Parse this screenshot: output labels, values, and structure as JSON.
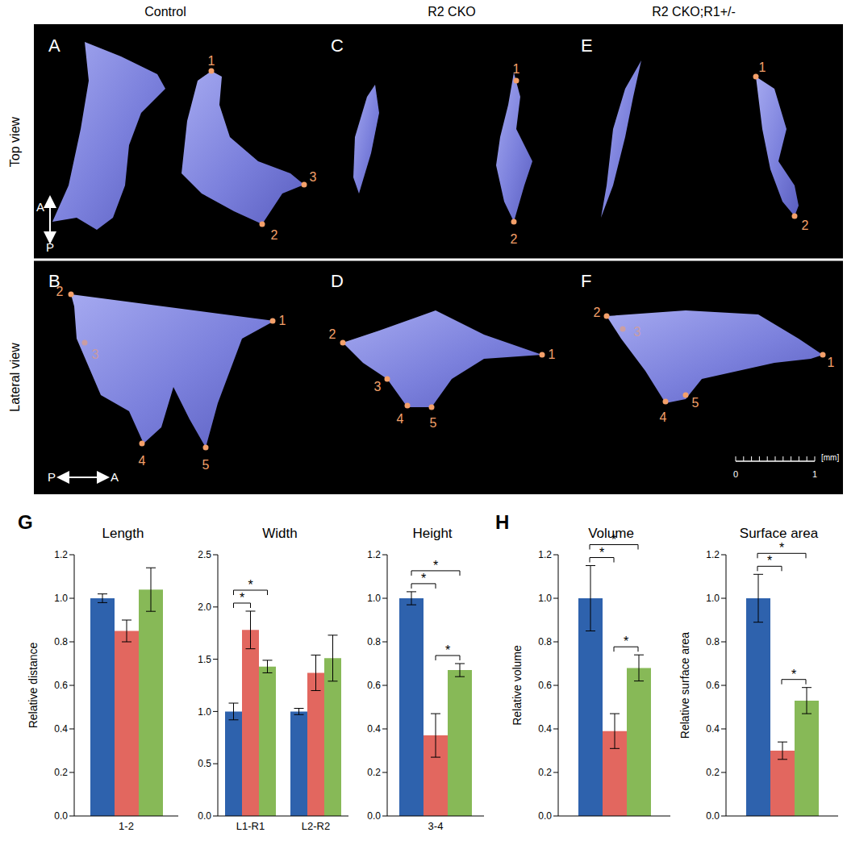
{
  "figure": {
    "columns": [
      "Control",
      "R2 CKO",
      "R2 CKO;R1+/-"
    ],
    "rows": [
      "Top view",
      "Lateral view"
    ],
    "panels": [
      {
        "letter": "A",
        "landmarks": [
          "1",
          "2",
          "3"
        ]
      },
      {
        "letter": "B",
        "landmarks": [
          "1",
          "2",
          "3",
          "4",
          "5"
        ]
      },
      {
        "letter": "C",
        "landmarks": [
          "1",
          "2"
        ]
      },
      {
        "letter": "D",
        "landmarks": [
          "1",
          "2",
          "3",
          "4",
          "5"
        ]
      },
      {
        "letter": "E",
        "landmarks": [
          "1",
          "2"
        ]
      },
      {
        "letter": "F",
        "landmarks": [
          "1",
          "2",
          "3",
          "4",
          "5"
        ]
      }
    ],
    "orientation": {
      "top": [
        "A",
        "P"
      ],
      "lateral": [
        "P",
        "A"
      ]
    },
    "scale_bar": {
      "labels": [
        "0",
        "1"
      ],
      "unit": "[mm]"
    },
    "chart_letters": [
      "G",
      "H"
    ]
  },
  "chart_data": [
    {
      "type": "bar",
      "title": "Length",
      "ylabel": "Relative distance",
      "categories": [
        "1-2"
      ],
      "series": [
        {
          "color": "#2e62ad",
          "values": [
            1.0
          ],
          "errors": [
            0.02
          ]
        },
        {
          "color": "#e2675f",
          "values": [
            0.85
          ],
          "errors": [
            0.05
          ]
        },
        {
          "color": "#87b957",
          "values": [
            1.04
          ],
          "errors": [
            0.1
          ]
        }
      ],
      "ylim": [
        0,
        1.2
      ],
      "yticks": [
        {
          "value": 0,
          "label": "0.0"
        },
        0.2,
        0.4,
        0.6,
        0.8,
        {
          "value": 1,
          "label": "1.0"
        },
        1.2
      ],
      "significance": []
    },
    {
      "type": "bar",
      "title": "Width",
      "categories": [
        "L1-R1",
        "L2-R2"
      ],
      "series": [
        {
          "color": "#2e62ad",
          "values": [
            1.0,
            1.0
          ],
          "errors": [
            0.08,
            0.03
          ]
        },
        {
          "color": "#e2675f",
          "values": [
            1.78,
            1.37
          ],
          "errors": [
            0.18,
            0.17
          ]
        },
        {
          "color": "#87b957",
          "values": [
            1.43,
            1.51
          ],
          "errors": [
            0.06,
            0.22
          ]
        }
      ],
      "ylim": [
        0,
        2.5
      ],
      "yticks": [
        {
          "value": 0,
          "label": "0.0"
        },
        0.5,
        {
          "value": 1,
          "label": "1.0"
        },
        1.5,
        {
          "value": 2,
          "label": "2.0"
        },
        2.5
      ],
      "significance": [
        {
          "category": 0,
          "between": [
            0,
            1
          ],
          "label": "*"
        },
        {
          "category": 0,
          "between": [
            0,
            2
          ],
          "label": "*"
        }
      ]
    },
    {
      "type": "bar",
      "title": "Height",
      "categories": [
        "3-4"
      ],
      "series": [
        {
          "color": "#2e62ad",
          "values": [
            1.0
          ],
          "errors": [
            0.03
          ]
        },
        {
          "color": "#e2675f",
          "values": [
            0.37
          ],
          "errors": [
            0.1
          ]
        },
        {
          "color": "#87b957",
          "values": [
            0.67
          ],
          "errors": [
            0.03
          ]
        }
      ],
      "ylim": [
        0,
        1.2
      ],
      "yticks": [
        {
          "value": 0,
          "label": "0.0"
        },
        0.2,
        0.4,
        0.6,
        0.8,
        {
          "value": 1,
          "label": "1.0"
        },
        1.2
      ],
      "significance": [
        {
          "category": 0,
          "between": [
            1,
            2
          ],
          "label": "*"
        },
        {
          "category": 0,
          "between": [
            0,
            1
          ],
          "label": "*"
        },
        {
          "category": 0,
          "between": [
            0,
            2
          ],
          "label": "*"
        }
      ]
    },
    {
      "type": "bar",
      "title": "Volume",
      "ylabel": "Relative volume",
      "categories": [
        null
      ],
      "series": [
        {
          "color": "#2e62ad",
          "values": [
            1.0
          ],
          "errors": [
            0.15
          ]
        },
        {
          "color": "#e2675f",
          "values": [
            0.39
          ],
          "errors": [
            0.08
          ]
        },
        {
          "color": "#87b957",
          "values": [
            0.68
          ],
          "errors": [
            0.06
          ]
        }
      ],
      "ylim": [
        0,
        1.2
      ],
      "yticks": [
        {
          "value": 0,
          "label": "0.0"
        },
        0.2,
        0.4,
        0.6,
        0.8,
        {
          "value": 1,
          "label": "1.0"
        },
        1.2
      ],
      "significance": [
        {
          "category": 0,
          "between": [
            1,
            2
          ],
          "label": "*"
        },
        {
          "category": 0,
          "between": [
            0,
            1
          ],
          "label": "*"
        },
        {
          "category": 0,
          "between": [
            0,
            2
          ],
          "label": "*"
        }
      ]
    },
    {
      "type": "bar",
      "title": "Surface area",
      "ylabel": "Relative surface area",
      "categories": [
        null
      ],
      "series": [
        {
          "color": "#2e62ad",
          "values": [
            1.0
          ],
          "errors": [
            0.11
          ]
        },
        {
          "color": "#e2675f",
          "values": [
            0.3
          ],
          "errors": [
            0.04
          ]
        },
        {
          "color": "#87b957",
          "values": [
            0.53
          ],
          "errors": [
            0.06
          ]
        }
      ],
      "ylim": [
        0,
        1.2
      ],
      "yticks": [
        {
          "value": 0,
          "label": "0.0"
        },
        0.2,
        0.4,
        0.6,
        0.8,
        {
          "value": 1,
          "label": "1.0"
        },
        1.2
      ],
      "significance": [
        {
          "category": 0,
          "between": [
            1,
            2
          ],
          "label": "*"
        },
        {
          "category": 0,
          "between": [
            0,
            1
          ],
          "label": "*"
        },
        {
          "category": 0,
          "between": [
            0,
            2
          ],
          "label": "*"
        }
      ]
    }
  ]
}
